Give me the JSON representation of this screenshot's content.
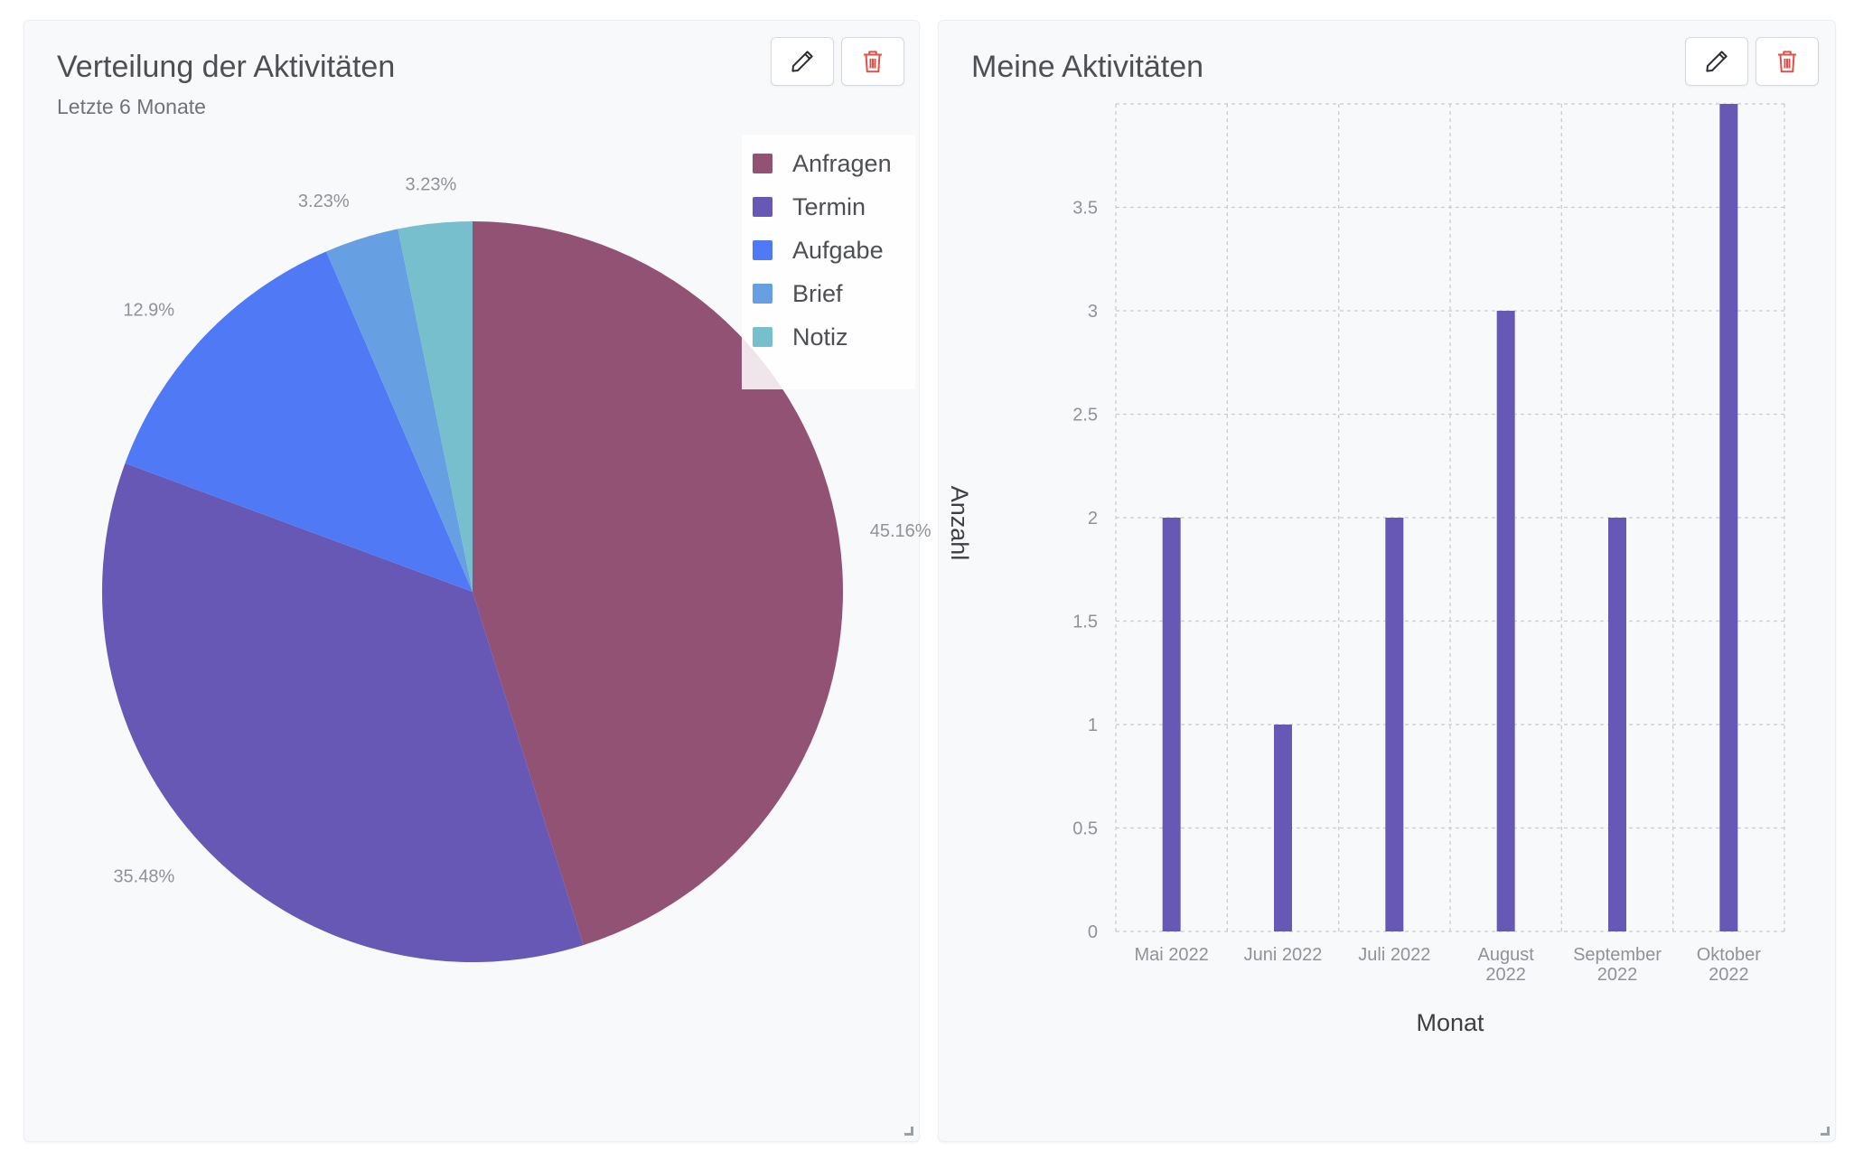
{
  "pie_card": {
    "title": "Verteilung der Aktivitäten",
    "subtitle": "Letzte 6 Monate",
    "edit_icon": "pencil-icon",
    "delete_icon": "trash-icon"
  },
  "bar_card": {
    "title": "Meine Aktivitäten",
    "edit_icon": "pencil-icon",
    "delete_icon": "trash-icon"
  },
  "colors": {
    "edit_icon": "#2b2d30",
    "delete_icon": "#e0504b",
    "bar": "#6758b5"
  },
  "chart_data": [
    {
      "type": "pie",
      "title": "Verteilung der Aktivitäten",
      "subtitle": "Letzte 6 Monate",
      "legend_position": "top-right",
      "slices": [
        {
          "name": "Anfragen",
          "value": 45.16,
          "label": "45.16%",
          "color": "#925274"
        },
        {
          "name": "Termin",
          "value": 35.48,
          "label": "35.48%",
          "color": "#6758b5"
        },
        {
          "name": "Aufgabe",
          "value": 12.9,
          "label": "12.9%",
          "color": "#507af5"
        },
        {
          "name": "Brief",
          "value": 3.23,
          "label": "3.23%",
          "color": "#679fe3"
        },
        {
          "name": "Notiz",
          "value": 3.23,
          "label": "3.23%",
          "color": "#78bfcd"
        }
      ]
    },
    {
      "type": "bar",
      "title": "Meine Aktivitäten",
      "xlabel": "Monat",
      "ylabel": "Anzahl",
      "categories": [
        [
          "Mai 2022"
        ],
        [
          "Juni 2022"
        ],
        [
          "Juli 2022"
        ],
        [
          "August",
          "2022"
        ],
        [
          "September",
          "2022"
        ],
        [
          "Oktober",
          "2022"
        ]
      ],
      "values": [
        2,
        1,
        2,
        3,
        2,
        4
      ],
      "ylim": [
        0,
        4
      ],
      "yticks": [
        0,
        0.5,
        1,
        1.5,
        2,
        2.5,
        3,
        3.5
      ],
      "grid": true,
      "color": "#6758b5"
    }
  ]
}
